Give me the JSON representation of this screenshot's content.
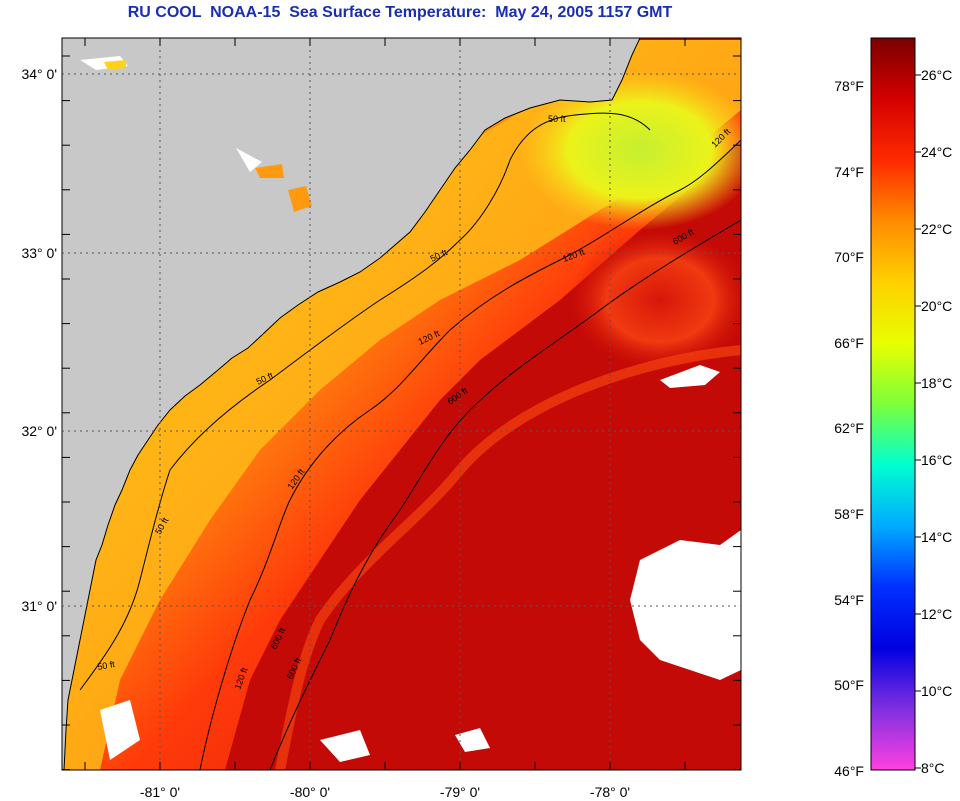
{
  "title": "RU COOL  NOAA-15  Sea Surface Temperature:  May 24, 2005 1157 GMT",
  "map": {
    "latitude_labels": [
      "34° 0'",
      "33° 0'",
      "32° 0'",
      "31° 0'"
    ],
    "longitude_labels": [
      "-81° 0'",
      "-80° 0'",
      "-79° 0'",
      "-78° 0'"
    ],
    "contour_labels": [
      "50 ft",
      "120 ft",
      "600 ft"
    ],
    "colors": {
      "land": "#c8c8c8",
      "cloud": "#ffffff",
      "coastline": "#000000",
      "contour": "#000000"
    }
  },
  "colorbar": {
    "fahrenheit_labels": [
      "78°F",
      "74°F",
      "70°F",
      "66°F",
      "62°F",
      "58°F",
      "54°F",
      "50°F",
      "46°F"
    ],
    "celsius_labels": [
      "26°C",
      "24°C",
      "22°C",
      "20°C",
      "18°C",
      "16°C",
      "14°C",
      "12°C",
      "10°C",
      "8°C"
    ],
    "colors_top_to_bottom": [
      "#7a0000",
      "#d40000",
      "#ff2a00",
      "#ff8c00",
      "#ffd000",
      "#e8ff00",
      "#7dff3a",
      "#00ffd0",
      "#00aaff",
      "#0030ff",
      "#0000e0",
      "#8030e0",
      "#ff40e0"
    ]
  }
}
